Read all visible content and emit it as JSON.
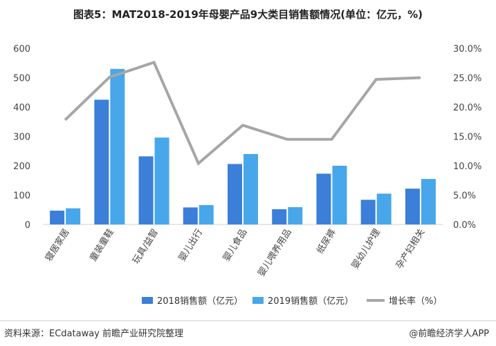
{
  "title": "图表5：MAT2018-2019年母婴产品9大类目销售额情况(单位：亿元，%)",
  "chart_data": {
    "type": "bar",
    "categories": [
      "寝居家居",
      "童装童鞋",
      "玩具/益智",
      "婴儿出行",
      "婴儿食品",
      "婴儿喂养用品",
      "纸尿裤",
      "婴幼儿护理",
      "孕产妇相关"
    ],
    "series": [
      {
        "name": "2018销售额（亿元）",
        "type": "bar",
        "axis": "left",
        "color": "#3b7fd8",
        "values": [
          47,
          425,
          232,
          58,
          206,
          52,
          173,
          84,
          122
        ]
      },
      {
        "name": "2019销售额（亿元）",
        "type": "bar",
        "axis": "left",
        "color": "#47a7ea",
        "values": [
          55,
          530,
          296,
          66,
          240,
          59,
          200,
          105,
          155
        ]
      },
      {
        "name": "增长率（%）",
        "type": "line",
        "axis": "right",
        "color": "#a6a6a6",
        "values": [
          17.8,
          25.1,
          27.6,
          10.4,
          16.9,
          14.5,
          14.5,
          24.7,
          25.0
        ]
      }
    ],
    "y_left": {
      "min": 0,
      "max": 600,
      "ticks": [
        0,
        100,
        200,
        300,
        400,
        500,
        600
      ]
    },
    "y_right": {
      "min": 0,
      "max": 30,
      "ticks": [
        "0.0%",
        "5.0%",
        "10.0%",
        "15.0%",
        "20.0%",
        "25.0%",
        "30.0%"
      ]
    },
    "grid": false,
    "legend_position": "bottom"
  },
  "legend": {
    "s2018": "2018销售额（亿元）",
    "s2019": "2019销售额（亿元）",
    "growth": "增长率（%）"
  },
  "footer": {
    "source": "资料来源：ECdataway 前瞻产业研究院整理",
    "brand": "@前瞻经济学人APP"
  },
  "colors": {
    "bar2018": "#3b7fd8",
    "bar2019": "#47a7ea",
    "line": "#a6a6a6"
  }
}
